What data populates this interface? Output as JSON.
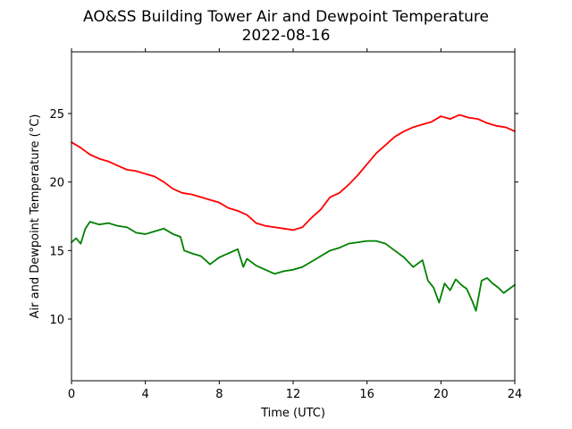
{
  "chart_data": {
    "type": "line",
    "title": "AO&SS Building Tower Air and Dewpoint Temperature",
    "subtitle": "2022-08-16",
    "xlabel": "Time (UTC)",
    "ylabel": "Air and Dewpoint Temperature (°C)",
    "xlim": [
      0,
      24
    ],
    "ylim": [
      5.5,
      29.5
    ],
    "xticks": [
      0,
      4,
      8,
      12,
      16,
      20,
      24
    ],
    "yticks": [
      10,
      15,
      20,
      25
    ],
    "grid": false,
    "series": [
      {
        "color": "#ff0000",
        "x": [
          0,
          0.5,
          1,
          1.5,
          2,
          2.5,
          3,
          3.5,
          4,
          4.5,
          5,
          5.5,
          6,
          6.5,
          7,
          7.5,
          8,
          8.5,
          9,
          9.5,
          10,
          10.5,
          11,
          11.5,
          12,
          12.5,
          13,
          13.5,
          14,
          14.5,
          15,
          15.5,
          16,
          16.5,
          17,
          17.5,
          18,
          18.5,
          19,
          19.5,
          20,
          20.5,
          21,
          21.5,
          22,
          22.5,
          23,
          23.5,
          24
        ],
        "y": [
          22.9,
          22.5,
          22.0,
          21.7,
          21.5,
          21.2,
          20.9,
          20.8,
          20.6,
          20.4,
          20.0,
          19.5,
          19.2,
          19.1,
          18.9,
          18.7,
          18.5,
          18.1,
          17.9,
          17.6,
          17.0,
          16.8,
          16.7,
          16.6,
          16.5,
          16.7,
          17.4,
          18.0,
          18.9,
          19.2,
          19.8,
          20.5,
          21.3,
          22.1,
          22.7,
          23.3,
          23.7,
          24.0,
          24.2,
          24.4,
          24.8,
          24.6,
          24.9,
          24.7,
          24.6,
          24.3,
          24.1,
          24.0,
          23.7
        ]
      },
      {
        "color": "#008000",
        "x": [
          0,
          0.25,
          0.5,
          0.75,
          1,
          1.5,
          2,
          2.5,
          3,
          3.5,
          4,
          4.5,
          5,
          5.5,
          5.9,
          6.1,
          6.5,
          7,
          7.5,
          8,
          8.5,
          9,
          9.3,
          9.5,
          10,
          10.5,
          11,
          11.5,
          12,
          12.5,
          13,
          13.5,
          14,
          14.5,
          15,
          15.5,
          16,
          16.5,
          17,
          17.5,
          18,
          18.5,
          19,
          19.3,
          19.6,
          19.9,
          20.2,
          20.5,
          20.8,
          21.1,
          21.4,
          21.7,
          21.9,
          22.2,
          22.5,
          22.8,
          23.1,
          23.4,
          23.7,
          24
        ],
        "y": [
          15.6,
          15.9,
          15.5,
          16.6,
          17.1,
          16.9,
          17.0,
          16.8,
          16.7,
          16.3,
          16.2,
          16.4,
          16.6,
          16.2,
          16.0,
          15.0,
          14.8,
          14.6,
          14.0,
          14.5,
          14.8,
          15.1,
          13.8,
          14.4,
          13.9,
          13.6,
          13.3,
          13.5,
          13.6,
          13.8,
          14.2,
          14.6,
          15.0,
          15.2,
          15.5,
          15.6,
          15.7,
          15.7,
          15.5,
          15.0,
          14.5,
          13.8,
          14.3,
          12.8,
          12.3,
          11.2,
          12.6,
          12.1,
          12.9,
          12.5,
          12.2,
          11.3,
          10.6,
          12.8,
          13.0,
          12.6,
          12.3,
          11.9,
          12.2,
          12.5
        ]
      }
    ]
  }
}
